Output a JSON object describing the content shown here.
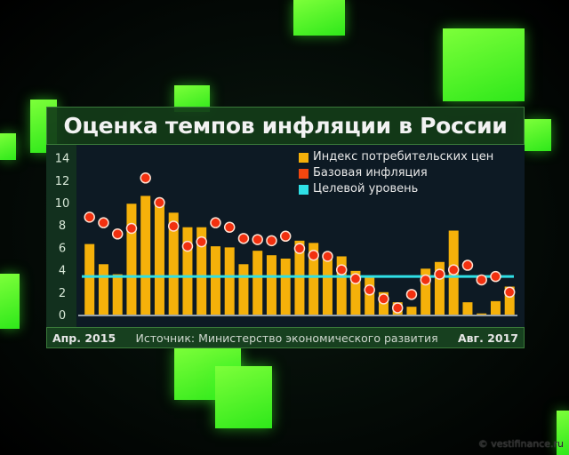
{
  "title": "Оценка темпов инфляции в России",
  "footer": {
    "start": "Апр. 2015",
    "source": "Источник: Министерство экономического развития",
    "end": "Авг. 2017"
  },
  "watermark": "© vestifinance.ru",
  "colors": {
    "cpi": "#f5b10a",
    "core": "#f2300f",
    "target": "#2fe0e6"
  },
  "chart_data": {
    "type": "bar",
    "title": "Оценка темпов инфляции в России",
    "ylim": [
      0,
      14
    ],
    "yticks": [
      "0",
      "2",
      "4",
      "6",
      "8",
      "10",
      "12",
      "14"
    ],
    "legend_position": "top-right",
    "legend": [
      "Индекс потребительских цен",
      "Базовая инфляция",
      "Целевой уровень"
    ],
    "series": [
      {
        "name": "Индекс потребительских цен",
        "type": "bar",
        "values": [
          6.3,
          4.5,
          3.6,
          9.9,
          10.6,
          10.0,
          9.1,
          7.8,
          7.8,
          6.1,
          6.0,
          4.5,
          5.7,
          5.3,
          5.0,
          6.6,
          6.4,
          5.2,
          5.2,
          3.9,
          3.3,
          2.0,
          1.1,
          0.7,
          4.1,
          4.7,
          7.5,
          1.1,
          0.1,
          1.2,
          2.5
        ]
      },
      {
        "name": "Базовая инфляция",
        "type": "scatter",
        "values": [
          8.7,
          8.2,
          7.2,
          7.7,
          12.2,
          10.0,
          7.9,
          6.1,
          6.5,
          8.2,
          7.8,
          6.8,
          6.7,
          6.6,
          7.0,
          5.9,
          5.3,
          5.2,
          4.0,
          3.2,
          2.2,
          1.4,
          0.6,
          1.8,
          3.1,
          3.6,
          4.0,
          4.4,
          3.1,
          3.4,
          2.0
        ]
      },
      {
        "name": "Целевой уровень",
        "type": "line",
        "value": 3.4
      }
    ]
  }
}
